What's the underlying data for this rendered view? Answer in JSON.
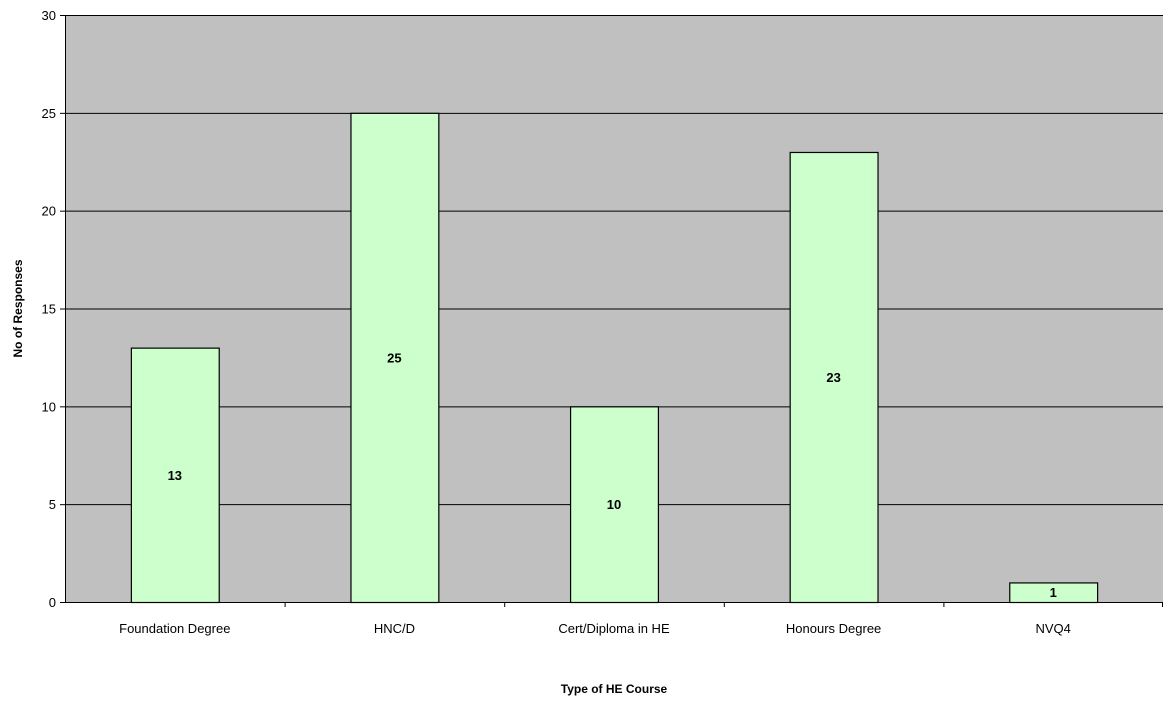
{
  "chart_data": {
    "type": "bar",
    "title": "",
    "xlabel": "Type of HE Course",
    "ylabel": "No of Responses",
    "categories": [
      "Foundation Degree",
      "HNC/D",
      "Cert/Diploma in HE",
      "Honours Degree",
      "NVQ4"
    ],
    "values": [
      13,
      25,
      10,
      23,
      1
    ],
    "data_labels": [
      "13",
      "25",
      "10",
      "23",
      "1"
    ],
    "ylim": [
      0,
      30
    ],
    "yticks": [
      0,
      5,
      10,
      15,
      20,
      25,
      30
    ],
    "ytick_labels": [
      "0",
      "5",
      "10",
      "15",
      "20",
      "25",
      "30"
    ],
    "grid": true,
    "legend": "none",
    "colors": {
      "plot_background": "#c0c0c0",
      "bar_fill": "#ccffcc",
      "bar_stroke": "#000000",
      "gridline": "#000000"
    }
  }
}
